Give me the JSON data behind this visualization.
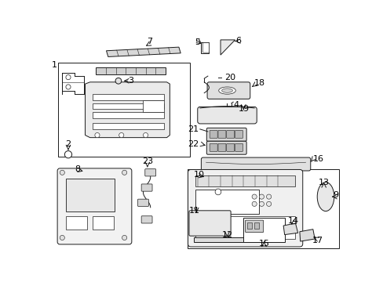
{
  "bg": "#ffffff",
  "lc": "#1a1a1a",
  "tc": "#000000",
  "fig_w": 4.89,
  "fig_h": 3.6,
  "dpi": 100
}
